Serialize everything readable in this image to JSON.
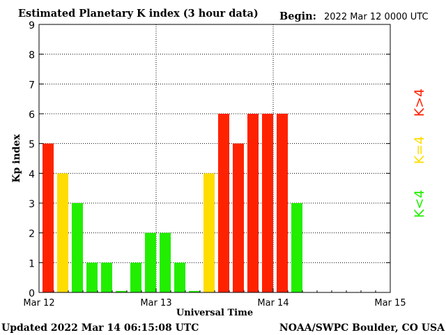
{
  "chart_data": {
    "type": "bar",
    "title": "Estimated Planetary K index (3 hour data)",
    "begin_label": "Begin:",
    "begin_value": "2022 Mar 12 0000 UTC",
    "ylabel": "Kp index",
    "xlabel": "Universal Time",
    "ylim": [
      0,
      9
    ],
    "yticks": [
      "0",
      "1",
      "2",
      "3",
      "4",
      "5",
      "6",
      "7",
      "8",
      "9"
    ],
    "xticks": [
      "Mar 12",
      "Mar 13",
      "Mar 14",
      "Mar 15"
    ],
    "bars_per_day": 8,
    "grid": true,
    "values": [
      5,
      4,
      3,
      1,
      1,
      0.05,
      1,
      2,
      2,
      1,
      0.05,
      4,
      6,
      5,
      6,
      6,
      6,
      3
    ],
    "colors": {
      "low": "#22ee00",
      "mid": "#ffdd00",
      "high": "#ff2200"
    },
    "legend": [
      "K<4",
      "K=4",
      "K>4"
    ],
    "legend_placement": "right"
  },
  "footer": {
    "updated": "Updated 2022 Mar 14 06:15:08 UTC",
    "credit": "NOAA/SWPC Boulder, CO USA"
  }
}
